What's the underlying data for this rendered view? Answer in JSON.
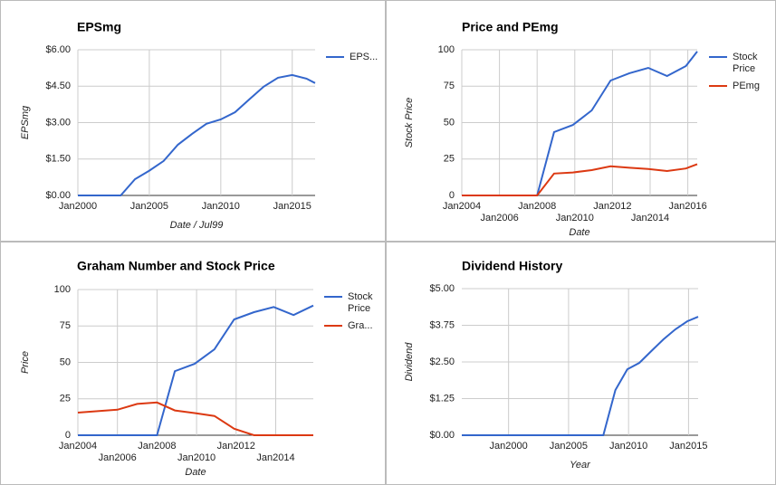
{
  "chart_data": [
    {
      "type": "line",
      "title": "EPSmg",
      "y_label": "EPSmg",
      "x_label": "Date / Jul99",
      "x": [
        2000,
        2001,
        2002,
        2003,
        2004,
        2005,
        2006,
        2007,
        2008,
        2009,
        2010,
        2011,
        2012,
        2013,
        2014,
        2015,
        2016,
        2016.6
      ],
      "series": [
        {
          "name": "EPS...",
          "color": "#3366cc",
          "values": [
            0,
            0,
            0,
            0,
            0.67,
            1.02,
            1.42,
            2.09,
            2.54,
            2.95,
            3.13,
            3.43,
            3.96,
            4.48,
            4.85,
            4.96,
            4.81,
            4.63
          ]
        }
      ],
      "xlim": [
        2000,
        2016.6
      ],
      "xticks": [
        {
          "value": 2000,
          "label": "Jan2000"
        },
        {
          "value": 2005,
          "label": "Jan2005"
        },
        {
          "value": 2010,
          "label": "Jan2010"
        },
        {
          "value": 2015,
          "label": "Jan2015"
        }
      ],
      "ylim": [
        0,
        6
      ],
      "yticks": [
        {
          "value": 0,
          "label": "$0.00"
        },
        {
          "value": 1.5,
          "label": "$1.50"
        },
        {
          "value": 3,
          "label": "$3.00"
        },
        {
          "value": 4.5,
          "label": "$4.50"
        },
        {
          "value": 6,
          "label": "$6.00"
        }
      ],
      "grid": true,
      "legend": "right"
    },
    {
      "type": "line",
      "title": "Price and PEmg",
      "y_label": "Stock Price",
      "x_label": "Date",
      "x": [
        2004,
        2005,
        2006,
        2007,
        2008,
        2008.9,
        2009.9,
        2010.9,
        2011.9,
        2012.9,
        2013.9,
        2014.9,
        2015.9,
        2016.5
      ],
      "series": [
        {
          "name": "Stock Price",
          "color": "#3366cc",
          "values": [
            0,
            0,
            0,
            0,
            0,
            43.5,
            48.4,
            58.4,
            78.9,
            83.9,
            87.6,
            82,
            88.8,
            98.8
          ]
        },
        {
          "name": "PEmg",
          "color": "#dc3912",
          "values": [
            0,
            0,
            0,
            0,
            0,
            15,
            15.8,
            17.4,
            20,
            19,
            18.2,
            16.8,
            18.5,
            21.5
          ]
        }
      ],
      "xlim": [
        2004,
        2016.5
      ],
      "xticks": [
        {
          "value": 2004,
          "label": "Jan2004"
        },
        {
          "value": 2006,
          "label": "Jan2006"
        },
        {
          "value": 2008,
          "label": "Jan2008"
        },
        {
          "value": 2010,
          "label": "Jan2010"
        },
        {
          "value": 2012,
          "label": "Jan2012"
        },
        {
          "value": 2014,
          "label": "Jan2014"
        },
        {
          "value": 2016,
          "label": "Jan2016"
        }
      ],
      "ylim": [
        0,
        100
      ],
      "yticks": [
        0,
        25,
        50,
        75,
        100
      ],
      "grid": true,
      "legend": "right"
    },
    {
      "type": "line",
      "title": "Graham Number and Stock Price",
      "y_label": "Price",
      "x_label": "Date",
      "x": [
        2004,
        2005,
        2006,
        2007,
        2008,
        2008.9,
        2009.9,
        2010.9,
        2011.9,
        2012.9,
        2013.9,
        2014.9,
        2015.9
      ],
      "series": [
        {
          "name": "Stock Price",
          "color": "#3366cc",
          "values": [
            0,
            0,
            0,
            0,
            0,
            44,
            49,
            59,
            79.5,
            84.5,
            88,
            82.5,
            89
          ]
        },
        {
          "name": "Gra...",
          "color": "#dc3912",
          "values": [
            15.5,
            16.5,
            17.5,
            21.5,
            22.5,
            17,
            15.2,
            13.2,
            4.5,
            0,
            0,
            0,
            0
          ]
        }
      ],
      "xlim": [
        2004,
        2015.9
      ],
      "xticks": [
        {
          "value": 2004,
          "label": "Jan2004"
        },
        {
          "value": 2006,
          "label": "Jan2006"
        },
        {
          "value": 2008,
          "label": "Jan2008"
        },
        {
          "value": 2010,
          "label": "Jan2010"
        },
        {
          "value": 2012,
          "label": "Jan2012"
        },
        {
          "value": 2014,
          "label": "Jan2014"
        }
      ],
      "ylim": [
        0,
        100
      ],
      "yticks": [
        0,
        25,
        50,
        75,
        100
      ],
      "grid": true,
      "legend": "right"
    },
    {
      "type": "line",
      "title": "Dividend History",
      "y_label": "Dividend",
      "x_label": "Year",
      "x": [
        1996.1,
        2007.9,
        2008.9,
        2009.9,
        2010.9,
        2011.9,
        2012.9,
        2013.9,
        2014.9,
        2015.8
      ],
      "series": [
        {
          "color": "#3366cc",
          "values": [
            0,
            0,
            1.54,
            2.25,
            2.47,
            2.87,
            3.27,
            3.61,
            3.89,
            4.04
          ]
        }
      ],
      "xlim": [
        1996.1,
        2015.8
      ],
      "xticks": [
        {
          "value": 2000,
          "label": "Jan2000"
        },
        {
          "value": 2005,
          "label": "Jan2005"
        },
        {
          "value": 2010,
          "label": "Jan2010"
        },
        {
          "value": 2015,
          "label": "Jan2015"
        }
      ],
      "ylim": [
        0,
        5
      ],
      "yticks": [
        {
          "value": 0,
          "label": "$0.00"
        },
        {
          "value": 1.25,
          "label": "$1.25"
        },
        {
          "value": 2.5,
          "label": "$2.50"
        },
        {
          "value": 3.75,
          "label": "$3.75"
        },
        {
          "value": 5,
          "label": "$5.00"
        }
      ],
      "grid": true
    }
  ]
}
